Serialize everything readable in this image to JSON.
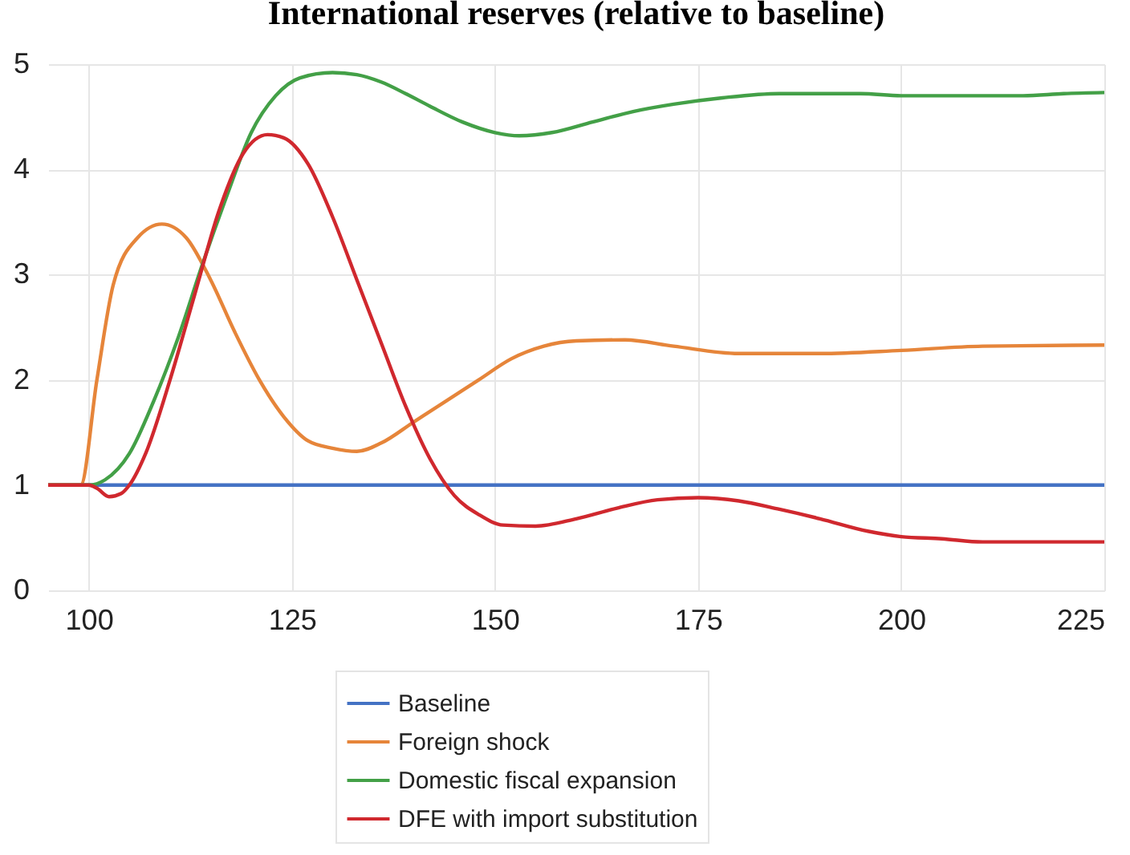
{
  "chart_data": {
    "type": "line",
    "title": "International reserves (relative to baseline)",
    "xlim": [
      95,
      225
    ],
    "xticks": [
      100,
      125,
      150,
      175,
      200,
      225
    ],
    "ylim": [
      0,
      5
    ],
    "yticks": [
      0,
      1,
      2,
      3,
      4,
      5
    ],
    "grid": true,
    "legend": "bottom",
    "marker": "none",
    "line_style": "solid",
    "series": [
      {
        "name": "Baseline",
        "color": "#4472c4",
        "x": [
          95,
          225
        ],
        "values": [
          1,
          1
        ]
      },
      {
        "name": "Foreign shock",
        "color": "#e6853a",
        "x": [
          95,
          99,
          101,
          103,
          106,
          109,
          112,
          115,
          118,
          121,
          124,
          127,
          130,
          133,
          136,
          140,
          144,
          148,
          152,
          156,
          160,
          166,
          172,
          180,
          190,
          200,
          210,
          225
        ],
        "values": [
          1,
          1,
          2.0,
          2.9,
          3.35,
          3.48,
          3.35,
          2.95,
          2.45,
          2.0,
          1.65,
          1.42,
          1.35,
          1.32,
          1.4,
          1.6,
          1.8,
          2.0,
          2.2,
          2.32,
          2.37,
          2.38,
          2.32,
          2.25,
          2.25,
          2.28,
          2.32,
          2.33
        ]
      },
      {
        "name": "Domestic fiscal expansion",
        "color": "#43a047",
        "x": [
          95,
          100,
          102,
          105,
          108,
          111,
          114,
          117,
          120,
          123,
          126,
          130,
          133,
          136,
          139,
          142,
          146,
          150,
          153,
          157,
          162,
          167,
          172,
          178,
          185,
          195,
          200,
          215,
          220,
          225
        ],
        "values": [
          1,
          1,
          1.05,
          1.3,
          1.8,
          2.4,
          3.1,
          3.75,
          4.35,
          4.7,
          4.87,
          4.92,
          4.9,
          4.83,
          4.72,
          4.6,
          4.45,
          4.35,
          4.32,
          4.35,
          4.45,
          4.55,
          4.62,
          4.68,
          4.72,
          4.72,
          4.7,
          4.7,
          4.72,
          4.73
        ]
      },
      {
        "name": "DFE with import substitution",
        "color": "#d0282e",
        "x": [
          95,
          100,
          101,
          102.5,
          104,
          105,
          107,
          110,
          113,
          116,
          119,
          122,
          124,
          127,
          130,
          133,
          136,
          139,
          142,
          145,
          148,
          151,
          155,
          160,
          165,
          170,
          175,
          180,
          185,
          190,
          196,
          200,
          205,
          210,
          225
        ],
        "values": [
          1,
          1,
          0.97,
          0.89,
          0.92,
          1.0,
          1.3,
          2.0,
          2.8,
          3.6,
          4.15,
          4.33,
          4.3,
          4.05,
          3.55,
          2.95,
          2.35,
          1.75,
          1.25,
          0.9,
          0.72,
          0.62,
          0.61,
          0.68,
          0.78,
          0.86,
          0.88,
          0.85,
          0.77,
          0.68,
          0.56,
          0.51,
          0.49,
          0.46,
          0.46
        ]
      }
    ]
  }
}
